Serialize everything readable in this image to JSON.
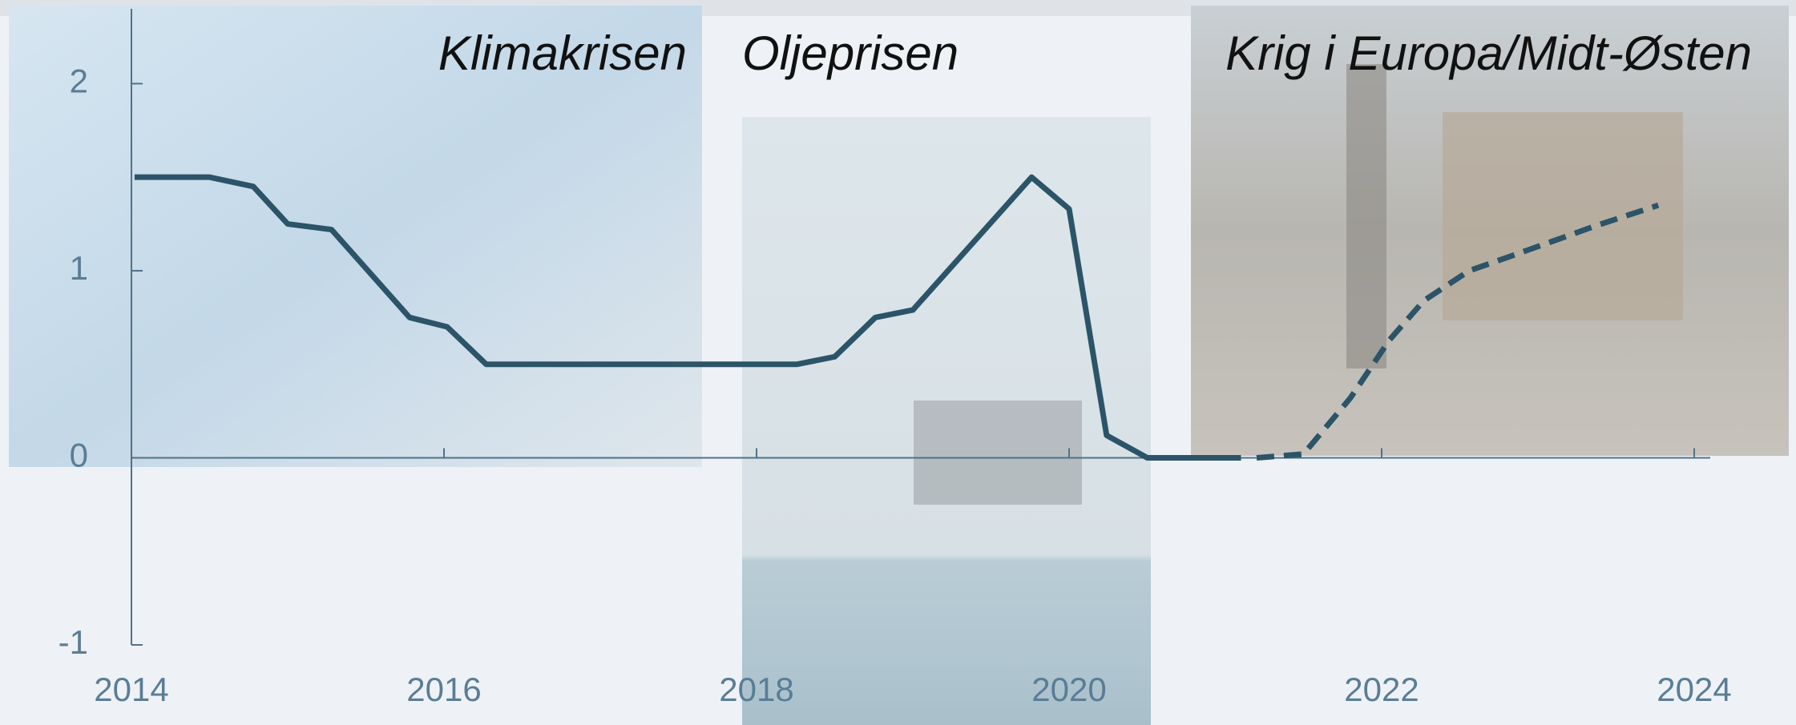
{
  "chart_data": {
    "type": "line",
    "annotations": [
      "Klimakrisen",
      "Oljeprisen",
      "Krig i Europa/Midt-Østen"
    ],
    "x": [
      2014.02,
      2014.5,
      2014.78,
      2015.0,
      2015.28,
      2015.78,
      2016.02,
      2016.27,
      2018.26,
      2018.5,
      2018.76,
      2019.0,
      2019.76,
      2020.0,
      2020.24,
      2020.5,
      2021.1,
      2021.2,
      2021.5,
      2021.8,
      2022.05,
      2022.27,
      2022.56,
      2022.8,
      2023.37,
      2023.77
    ],
    "series": [
      {
        "color": "#2c5468",
        "dashed": false,
        "values": [
          1.5,
          1.5,
          1.45,
          1.25,
          1.22,
          0.75,
          0.7,
          0.5,
          0.5,
          0.54,
          0.75,
          0.79,
          1.5,
          1.33,
          0.12,
          0,
          0,
          null,
          null,
          null,
          null,
          null,
          null,
          null,
          null,
          null
        ]
      },
      {
        "color": "#2c5468",
        "dashed": true,
        "values": [
          null,
          null,
          null,
          null,
          null,
          null,
          null,
          null,
          null,
          null,
          null,
          null,
          null,
          null,
          null,
          null,
          null,
          0,
          0.02,
          0.32,
          0.63,
          0.84,
          1.0,
          1.07,
          1.24,
          1.35
        ]
      }
    ],
    "xlim": [
      2014,
      2024
    ],
    "xticks": [
      2014,
      2016,
      2018,
      2020,
      2022,
      2024
    ],
    "ylim": [
      -1,
      2.4
    ],
    "yticks": [
      -1,
      0,
      1,
      2
    ]
  }
}
